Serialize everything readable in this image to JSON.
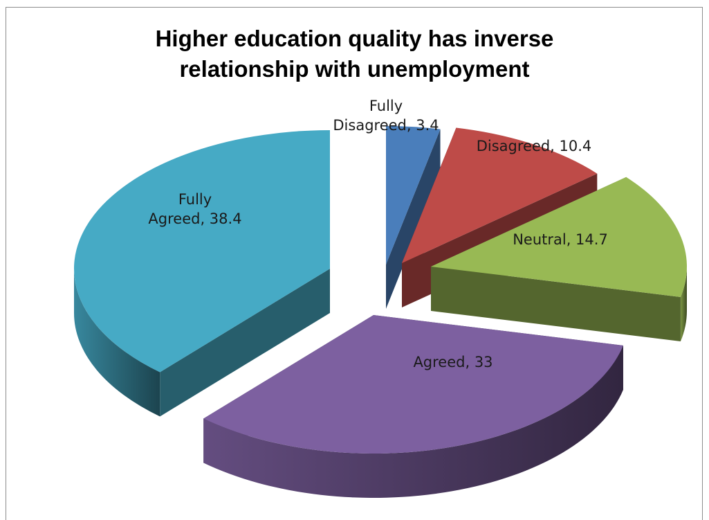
{
  "chart_data": {
    "type": "pie",
    "style": "3d-exploded",
    "title_lines": [
      "Higher education quality has inverse",
      "relationship with unemployment"
    ],
    "slices": [
      {
        "label_lines": [
          "Fully",
          "Disagreed, 3.4"
        ],
        "label": "Fully Disagreed",
        "value": 3.4,
        "color": "#4a7ebb"
      },
      {
        "label_lines": [
          "Disagreed, 10.4"
        ],
        "label": "Disagreed",
        "value": 10.4,
        "color": "#be4b48"
      },
      {
        "label_lines": [
          "Neutral, 14.7"
        ],
        "label": "Neutral",
        "value": 14.7,
        "color": "#98b954"
      },
      {
        "label_lines": [
          "Agreed, 33"
        ],
        "label": "Agreed",
        "value": 33,
        "color": "#7d60a0"
      },
      {
        "label_lines": [
          "Fully",
          "Agreed, 38.4"
        ],
        "label": "Fully Agreed",
        "value": 38.4,
        "color": "#46aac5"
      }
    ],
    "legend": "none"
  }
}
